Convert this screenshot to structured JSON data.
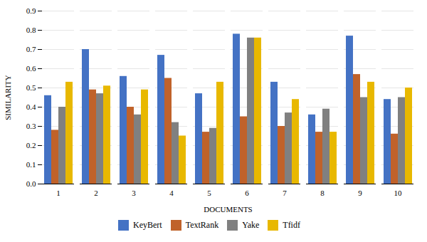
{
  "chart_data": {
    "type": "bar",
    "xlabel": "DOCUMENTS",
    "ylabel": "SIMILARITY",
    "categories": [
      "1",
      "2",
      "3",
      "4",
      "5",
      "6",
      "7",
      "8",
      "9",
      "10"
    ],
    "series": [
      {
        "name": "KeyBert",
        "color": "#4472C4",
        "values": [
          0.46,
          0.7,
          0.56,
          0.67,
          0.47,
          0.78,
          0.53,
          0.36,
          0.77,
          0.44
        ]
      },
      {
        "name": "TextRank",
        "color": "#C0622A",
        "values": [
          0.28,
          0.49,
          0.4,
          0.55,
          0.27,
          0.35,
          0.3,
          0.27,
          0.57,
          0.26
        ]
      },
      {
        "name": "Yake",
        "color": "#808080",
        "values": [
          0.4,
          0.47,
          0.36,
          0.32,
          0.29,
          0.76,
          0.37,
          0.39,
          0.45,
          0.45
        ]
      },
      {
        "name": "Tfidf",
        "color": "#E8B800",
        "values": [
          0.53,
          0.51,
          0.49,
          0.25,
          0.53,
          0.76,
          0.44,
          0.27,
          0.53,
          0.5
        ]
      }
    ],
    "ylim": [
      0,
      0.9
    ],
    "yticks": [
      0,
      0.1,
      0.2,
      0.3,
      0.4,
      0.5,
      0.6,
      0.7,
      0.8,
      0.9
    ],
    "grid": true,
    "legend": "bottom"
  }
}
